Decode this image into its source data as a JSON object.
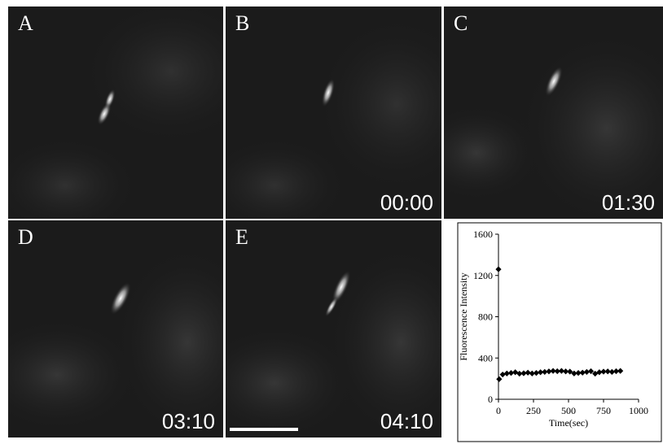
{
  "panels": [
    {
      "id": "A",
      "label": "A",
      "timestamp": ""
    },
    {
      "id": "B",
      "label": "B",
      "timestamp": "00:00"
    },
    {
      "id": "C",
      "label": "C",
      "timestamp": "01:30"
    },
    {
      "id": "D",
      "label": "D",
      "timestamp": "03:10"
    },
    {
      "id": "E",
      "label": "E",
      "timestamp": "04:10"
    }
  ],
  "colors": {
    "background": "#1b1b1b",
    "label": "#ffffff",
    "divider": "#ffffff"
  },
  "chart_data": {
    "type": "scatter",
    "title": "",
    "xlabel": "Time(sec)",
    "ylabel": "Fluorescence Intensity",
    "xlim": [
      0,
      1000
    ],
    "ylim": [
      0,
      1600
    ],
    "xticks": [
      0,
      250,
      500,
      750,
      1000
    ],
    "yticks": [
      0,
      400,
      800,
      1200,
      1600
    ],
    "grid": false,
    "legend": "none",
    "marker": "diamond",
    "x": [
      0,
      5,
      30,
      60,
      90,
      120,
      150,
      180,
      210,
      240,
      270,
      300,
      330,
      360,
      390,
      420,
      450,
      480,
      510,
      540,
      570,
      600,
      630,
      660,
      690,
      720,
      750,
      780,
      810,
      840,
      870
    ],
    "y": [
      1260,
      195,
      240,
      250,
      255,
      262,
      248,
      252,
      258,
      250,
      255,
      262,
      265,
      270,
      275,
      272,
      275,
      270,
      268,
      250,
      255,
      258,
      265,
      272,
      248,
      262,
      268,
      270,
      265,
      272,
      275
    ]
  }
}
